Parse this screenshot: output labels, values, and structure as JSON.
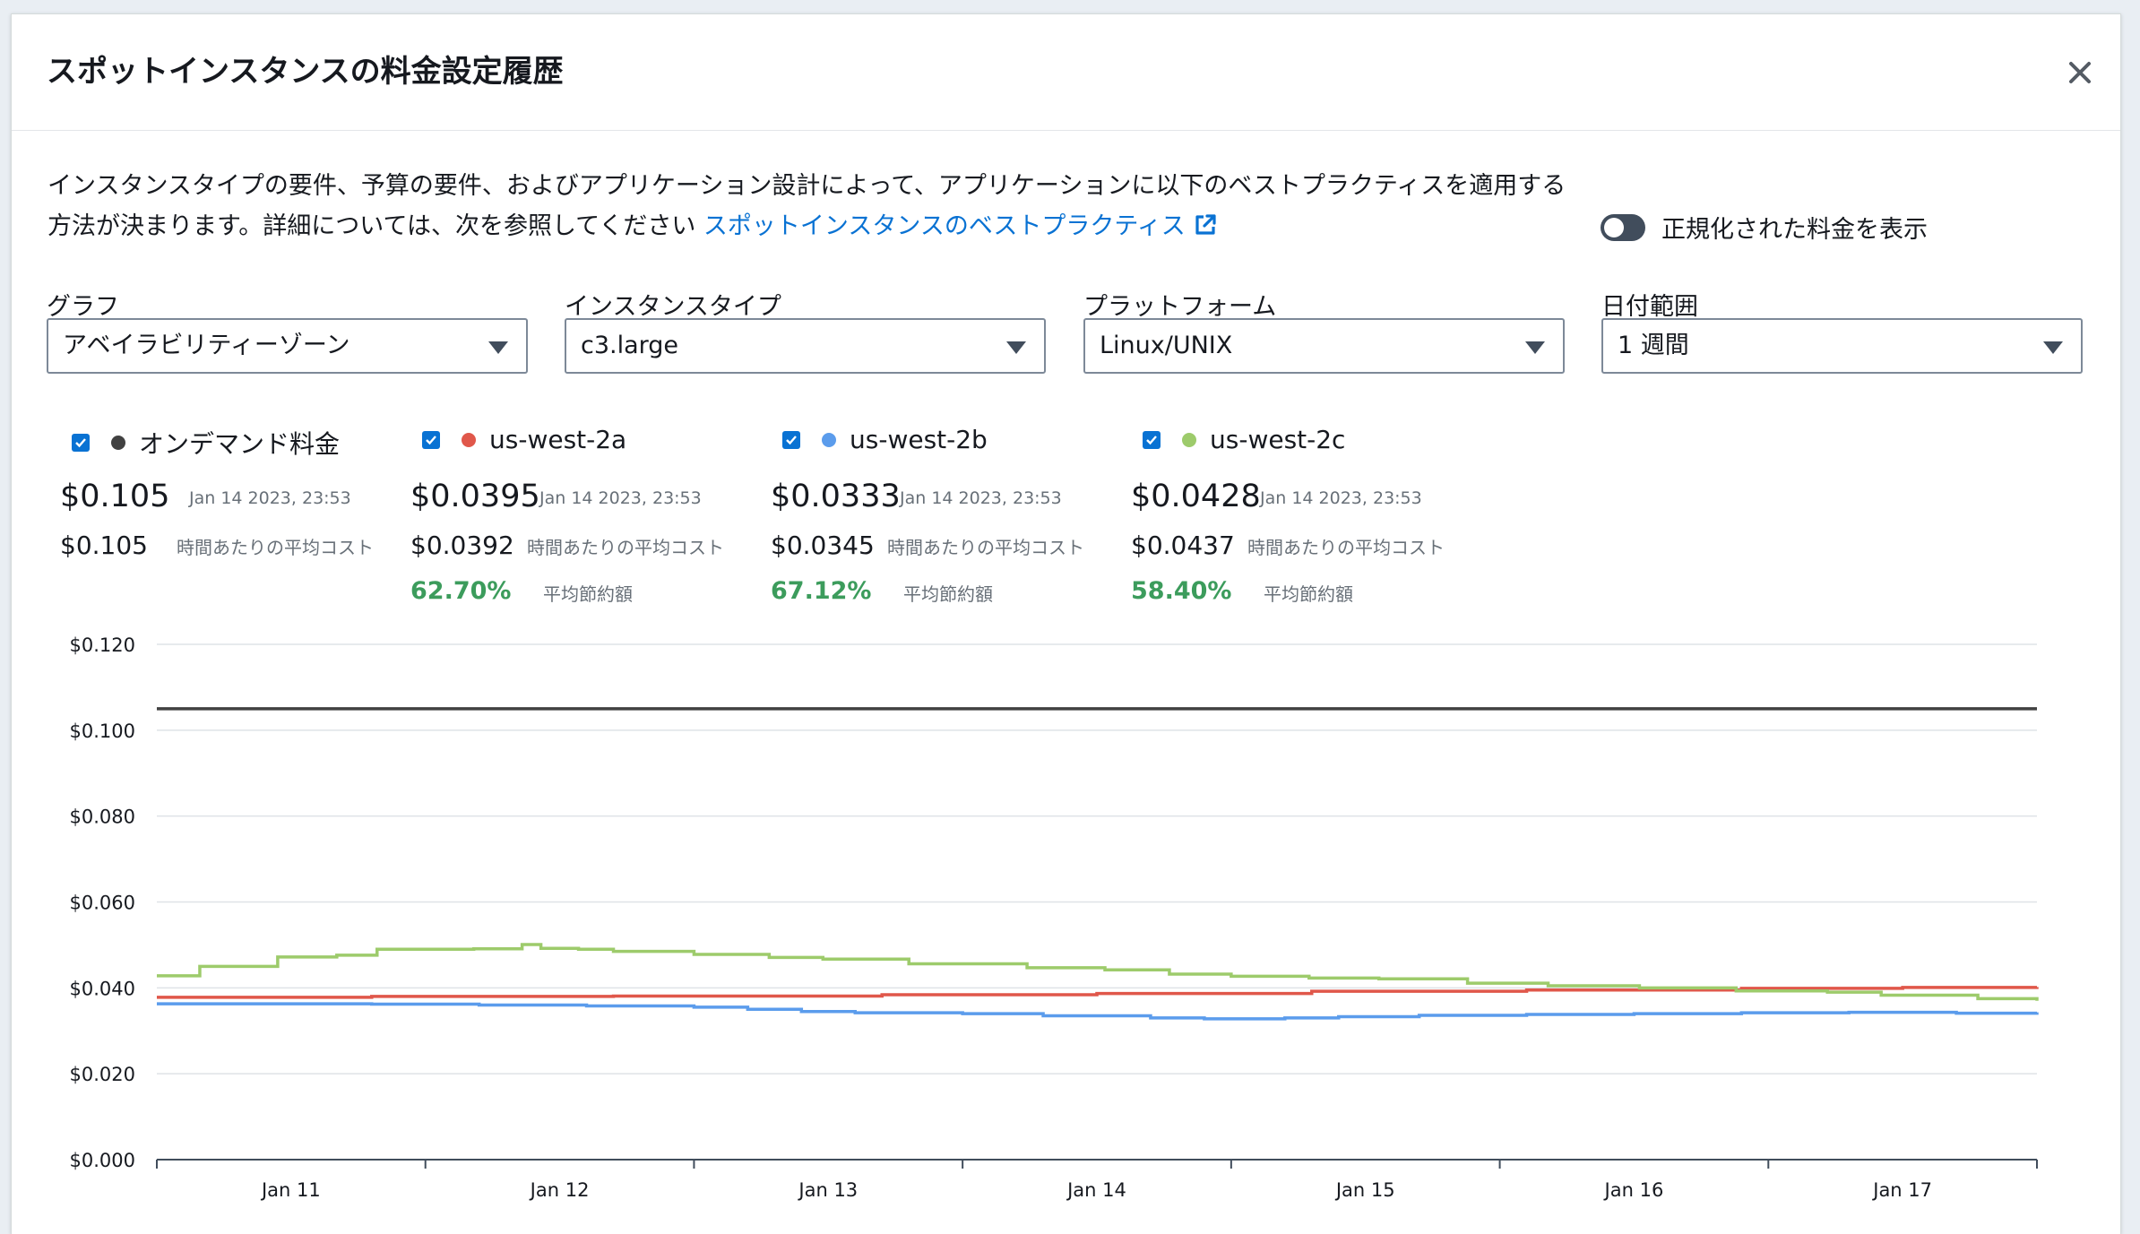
{
  "modal": {
    "title": "スポットインスタンスの料金設定履歴",
    "description": "インスタンスタイプの要件、予算の要件、およびアプリケーション設計によって、アプリケーションに以下のベストプラクティスを適用する方法が決まります。詳細については、次を参照してください ",
    "link_text": "スポットインスタンスのベストプラクティス",
    "toggle_label": "正規化された料金を表示",
    "toggle_on": false
  },
  "filters": [
    {
      "label": "グラフ",
      "value": "アベイラビリティーゾーン"
    },
    {
      "label": "インスタンスタイプ",
      "value": "c3.large"
    },
    {
      "label": "プラットフォーム",
      "value": "Linux/UNIX"
    },
    {
      "label": "日付範囲",
      "value": "1 週間"
    }
  ],
  "legend": [
    {
      "name": "オンデマンド料金",
      "color": "#414141",
      "checked": true,
      "price": "$0.105",
      "timestamp": "Jan 14 2023, 23:53",
      "avg": "$0.105",
      "avg_label": "時間あたりの平均コスト",
      "savings": "",
      "savings_label": ""
    },
    {
      "name": "us-west-2a",
      "color": "#e0574a",
      "checked": true,
      "price": "$0.0395",
      "timestamp": "Jan 14 2023, 23:53",
      "avg": "$0.0392",
      "avg_label": "時間あたりの平均コスト",
      "savings": "62.70%",
      "savings_label": "平均節約額"
    },
    {
      "name": "us-west-2b",
      "color": "#5b9cec",
      "checked": true,
      "price": "$0.0333",
      "timestamp": "Jan 14 2023, 23:53",
      "avg": "$0.0345",
      "avg_label": "時間あたりの平均コスト",
      "savings": "67.12%",
      "savings_label": "平均節約額"
    },
    {
      "name": "us-west-2c",
      "color": "#9dcb6b",
      "checked": true,
      "price": "$0.0428",
      "timestamp": "Jan 14 2023, 23:53",
      "avg": "$0.0437",
      "avg_label": "時間あたりの平均コスト",
      "savings": "58.40%",
      "savings_label": "平均節約額"
    }
  ],
  "chart_data": {
    "type": "line",
    "step": true,
    "grid": true,
    "xlim": [
      10.5,
      17.5
    ],
    "ylim": [
      0,
      0.12
    ],
    "x_ticks": [
      11,
      12,
      13,
      14,
      15,
      16,
      17
    ],
    "x_tick_labels": [
      "Jan 11",
      "Jan 12",
      "Jan 13",
      "Jan 14",
      "Jan 15",
      "Jan 16",
      "Jan 17"
    ],
    "y_ticks": [
      0,
      0.02,
      0.04,
      0.06,
      0.08,
      0.1,
      0.12
    ],
    "y_tick_labels": [
      "$0.000",
      "$0.020",
      "$0.040",
      "$0.060",
      "$0.080",
      "$0.100",
      "$0.120"
    ],
    "series": [
      {
        "name": "オンデマンド料金",
        "color": "#414141",
        "x": [
          10.5,
          17.5
        ],
        "y": [
          0.105,
          0.105
        ]
      },
      {
        "name": "us-west-2a",
        "color": "#e0574a",
        "x": [
          10.5,
          11.3,
          12.2,
          13.2,
          14.0,
          14.8,
          15.6,
          16.4,
          17.0,
          17.5
        ],
        "y": [
          0.0378,
          0.038,
          0.0381,
          0.0384,
          0.0387,
          0.0392,
          0.0395,
          0.0399,
          0.0401,
          0.0402
        ]
      },
      {
        "name": "us-west-2b",
        "color": "#5b9cec",
        "x": [
          10.5,
          11.3,
          11.7,
          12.1,
          12.5,
          12.7,
          12.9,
          13.1,
          13.5,
          13.8,
          14.2,
          14.4,
          14.7,
          14.9,
          15.2,
          15.6,
          16.0,
          16.4,
          16.8,
          17.2,
          17.5
        ],
        "y": [
          0.0363,
          0.0362,
          0.036,
          0.0358,
          0.0355,
          0.035,
          0.0345,
          0.0342,
          0.034,
          0.0335,
          0.033,
          0.0328,
          0.033,
          0.0333,
          0.0336,
          0.0338,
          0.034,
          0.0342,
          0.0343,
          0.0341,
          0.0343
        ]
      },
      {
        "name": "us-west-2c",
        "color": "#9dcb6b",
        "x": [
          10.5,
          10.66,
          10.95,
          11.17,
          11.32,
          11.68,
          11.86,
          11.93,
          12.07,
          12.2,
          12.5,
          12.78,
          12.98,
          13.3,
          13.74,
          14.03,
          14.27,
          14.5,
          14.79,
          15.05,
          15.38,
          15.68,
          16.02,
          16.38,
          16.72,
          16.92,
          17.28,
          17.5
        ],
        "y": [
          0.0428,
          0.045,
          0.0472,
          0.0476,
          0.049,
          0.0491,
          0.0501,
          0.0492,
          0.049,
          0.0485,
          0.0478,
          0.0471,
          0.0467,
          0.0456,
          0.0447,
          0.0442,
          0.0432,
          0.0427,
          0.0423,
          0.0421,
          0.0411,
          0.0405,
          0.04,
          0.0393,
          0.039,
          0.0383,
          0.0375,
          0.037
        ]
      }
    ]
  }
}
